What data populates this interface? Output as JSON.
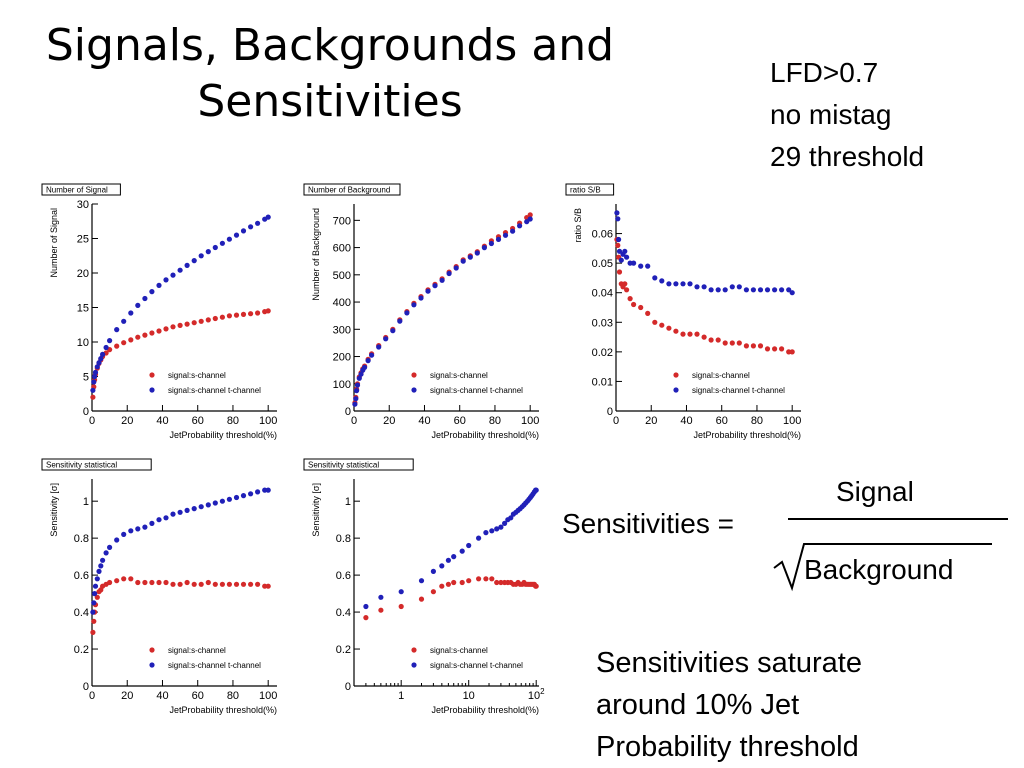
{
  "slide": {
    "title_line1": "Signals, Backgrounds and",
    "title_line2": "Sensitivities",
    "cuts": [
      "LFD>0.7",
      "no mistag",
      "29 threshold"
    ],
    "formula": {
      "lhs": "Sensitivities =",
      "numerator": "Signal",
      "denominator": "Background"
    },
    "note_lines": [
      "Sensitivities saturate",
      "around 10% Jet",
      "Probability threshold"
    ]
  },
  "colors": {
    "s_channel": "#d42a2a",
    "st_channel": "#2020b8"
  },
  "chart_data": [
    {
      "type": "scatter",
      "title": "Number of Signal",
      "xlabel": "JetProbability threshold(%)",
      "ylabel": "Number of Signal",
      "xlim": [
        0,
        105
      ],
      "ylim": [
        0,
        30
      ],
      "xticks": [
        0,
        20,
        40,
        60,
        80,
        100
      ],
      "yticks": [
        0,
        5,
        10,
        15,
        20,
        25,
        30
      ],
      "xscale": "linear",
      "legend": "bottom-right",
      "series": [
        {
          "name": "signal:s-channel",
          "color": "#d42a2a",
          "x": [
            0.5,
            1,
            1.5,
            2,
            3,
            4,
            5,
            6,
            8,
            10,
            14,
            18,
            22,
            26,
            30,
            34,
            38,
            42,
            46,
            50,
            54,
            58,
            62,
            66,
            70,
            74,
            78,
            82,
            86,
            90,
            94,
            98,
            100
          ],
          "y": [
            2,
            3.5,
            4.5,
            5.3,
            6.2,
            6.9,
            7.4,
            7.9,
            8.4,
            8.9,
            9.4,
            9.9,
            10.3,
            10.7,
            11,
            11.3,
            11.6,
            11.9,
            12.2,
            12.4,
            12.6,
            12.8,
            13,
            13.2,
            13.4,
            13.6,
            13.8,
            13.9,
            14,
            14.1,
            14.2,
            14.4,
            14.5
          ]
        },
        {
          "name": "signal:s-channel t-channel",
          "color": "#2020b8",
          "x": [
            0.5,
            1,
            1.5,
            2,
            3,
            4,
            5,
            6,
            8,
            10,
            14,
            18,
            22,
            26,
            30,
            34,
            38,
            42,
            46,
            50,
            54,
            58,
            62,
            66,
            70,
            74,
            78,
            82,
            86,
            90,
            94,
            98,
            100
          ],
          "y": [
            3,
            4.2,
            5,
            5.6,
            6.4,
            7,
            7.6,
            8.2,
            9.2,
            10.2,
            11.8,
            13,
            14.2,
            15.3,
            16.3,
            17.3,
            18.2,
            19,
            19.7,
            20.4,
            21.1,
            21.8,
            22.5,
            23.1,
            23.7,
            24.3,
            24.9,
            25.5,
            26.1,
            26.7,
            27.2,
            27.8,
            28.1
          ]
        }
      ]
    },
    {
      "type": "scatter",
      "title": "Number of Background",
      "xlabel": "JetProbability threshold(%)",
      "ylabel": "Number of Background",
      "xlim": [
        0,
        105
      ],
      "ylim": [
        0,
        760
      ],
      "xticks": [
        0,
        20,
        40,
        60,
        80,
        100
      ],
      "yticks": [
        0,
        100,
        200,
        300,
        400,
        500,
        600,
        700
      ],
      "xscale": "linear",
      "legend": "bottom-right",
      "series": [
        {
          "name": "signal:s-channel",
          "color": "#d42a2a",
          "x": [
            0.5,
            1,
            1.5,
            2,
            3,
            4,
            5,
            6,
            8,
            10,
            14,
            18,
            22,
            26,
            30,
            34,
            38,
            42,
            46,
            50,
            54,
            58,
            62,
            66,
            70,
            74,
            78,
            82,
            86,
            90,
            94,
            98,
            100
          ],
          "y": [
            30,
            50,
            80,
            100,
            125,
            140,
            155,
            165,
            190,
            210,
            240,
            270,
            300,
            335,
            365,
            395,
            420,
            445,
            465,
            485,
            510,
            530,
            555,
            570,
            585,
            605,
            625,
            640,
            655,
            670,
            690,
            710,
            720
          ]
        },
        {
          "name": "signal:s-channel t-channel",
          "color": "#2020b8",
          "x": [
            0.5,
            1,
            1.5,
            2,
            3,
            4,
            5,
            6,
            8,
            10,
            14,
            18,
            22,
            26,
            30,
            34,
            38,
            42,
            46,
            50,
            54,
            58,
            62,
            66,
            70,
            74,
            78,
            82,
            86,
            90,
            94,
            98,
            100
          ],
          "y": [
            25,
            45,
            75,
            95,
            120,
            135,
            150,
            160,
            185,
            205,
            235,
            265,
            295,
            330,
            360,
            390,
            415,
            440,
            460,
            480,
            505,
            525,
            550,
            565,
            580,
            600,
            615,
            630,
            645,
            660,
            680,
            695,
            705
          ]
        }
      ]
    },
    {
      "type": "scatter",
      "title": "ratio S/B",
      "xlabel": "JetProbability threshold(%)",
      "ylabel": "ratio S/B",
      "xlim": [
        0,
        105
      ],
      "ylim": [
        0,
        0.07
      ],
      "xticks": [
        0,
        20,
        40,
        60,
        80,
        100
      ],
      "yticks": [
        0,
        0.01,
        0.02,
        0.03,
        0.04,
        0.05,
        0.06
      ],
      "xscale": "linear",
      "legend": "bottom-right",
      "series": [
        {
          "name": "signal:s-channel",
          "color": "#d42a2a",
          "x": [
            0.5,
            1,
            1.5,
            2,
            3,
            4,
            5,
            6,
            8,
            10,
            14,
            18,
            22,
            26,
            30,
            34,
            38,
            42,
            46,
            50,
            54,
            58,
            62,
            66,
            70,
            74,
            78,
            82,
            86,
            90,
            94,
            98,
            100
          ],
          "y": [
            0.058,
            0.056,
            0.052,
            0.047,
            0.043,
            0.042,
            0.043,
            0.041,
            0.038,
            0.036,
            0.035,
            0.033,
            0.03,
            0.029,
            0.028,
            0.027,
            0.026,
            0.026,
            0.026,
            0.025,
            0.024,
            0.024,
            0.023,
            0.023,
            0.023,
            0.022,
            0.022,
            0.022,
            0.021,
            0.021,
            0.021,
            0.02,
            0.02
          ]
        },
        {
          "name": "signal:s-channel t-channel",
          "color": "#2020b8",
          "x": [
            0.5,
            1,
            1.5,
            2,
            3,
            4,
            5,
            6,
            8,
            10,
            14,
            18,
            22,
            26,
            30,
            34,
            38,
            42,
            46,
            50,
            54,
            58,
            62,
            66,
            70,
            74,
            78,
            82,
            86,
            90,
            94,
            98,
            100
          ],
          "y": [
            0.067,
            0.065,
            0.058,
            0.054,
            0.051,
            0.053,
            0.054,
            0.052,
            0.05,
            0.05,
            0.049,
            0.049,
            0.045,
            0.044,
            0.043,
            0.043,
            0.043,
            0.043,
            0.042,
            0.042,
            0.041,
            0.041,
            0.041,
            0.042,
            0.042,
            0.041,
            0.041,
            0.041,
            0.041,
            0.041,
            0.041,
            0.041,
            0.04
          ]
        }
      ]
    },
    {
      "type": "scatter",
      "title": "Sensitivity statistical",
      "xlabel": "JetProbability threshold(%)",
      "ylabel": "Sensitivity [σ]",
      "xlim": [
        0,
        105
      ],
      "ylim": [
        0,
        1.12
      ],
      "xticks": [
        0,
        20,
        40,
        60,
        80,
        100
      ],
      "yticks": [
        0,
        0.2,
        0.4,
        0.6,
        0.8,
        1
      ],
      "xscale": "linear",
      "legend": "bottom-right",
      "series": [
        {
          "name": "signal:s-channel",
          "color": "#d42a2a",
          "x": [
            0.5,
            1,
            1.5,
            2,
            3,
            4,
            5,
            6,
            8,
            10,
            14,
            18,
            22,
            26,
            30,
            34,
            38,
            42,
            46,
            50,
            54,
            58,
            62,
            66,
            70,
            74,
            78,
            82,
            86,
            90,
            94,
            98,
            100
          ],
          "y": [
            0.29,
            0.35,
            0.4,
            0.44,
            0.48,
            0.51,
            0.52,
            0.54,
            0.55,
            0.56,
            0.57,
            0.58,
            0.58,
            0.56,
            0.56,
            0.56,
            0.56,
            0.56,
            0.55,
            0.55,
            0.56,
            0.55,
            0.55,
            0.56,
            0.55,
            0.55,
            0.55,
            0.55,
            0.55,
            0.55,
            0.55,
            0.54,
            0.54
          ]
        },
        {
          "name": "signal:s-channel t-channel",
          "color": "#2020b8",
          "x": [
            0.5,
            1,
            1.5,
            2,
            3,
            4,
            5,
            6,
            8,
            10,
            14,
            18,
            22,
            26,
            30,
            34,
            38,
            42,
            46,
            50,
            54,
            58,
            62,
            66,
            70,
            74,
            78,
            82,
            86,
            90,
            94,
            98,
            100
          ],
          "y": [
            0.4,
            0.45,
            0.5,
            0.54,
            0.58,
            0.62,
            0.65,
            0.68,
            0.72,
            0.75,
            0.79,
            0.82,
            0.84,
            0.85,
            0.86,
            0.88,
            0.9,
            0.91,
            0.93,
            0.94,
            0.95,
            0.96,
            0.97,
            0.98,
            0.99,
            1,
            1.01,
            1.02,
            1.03,
            1.04,
            1.05,
            1.06,
            1.06
          ]
        }
      ]
    },
    {
      "type": "scatter",
      "title": "Sensitivity statistical",
      "xlabel": "JetProbability threshold(%)",
      "ylabel": "Sensitivity [σ]",
      "xlim": [
        0.2,
        110
      ],
      "ylim": [
        0,
        1.12
      ],
      "xticks": [
        1,
        10,
        100
      ],
      "xticklabels": [
        "1",
        "10",
        "10^2"
      ],
      "yticks": [
        0,
        0.2,
        0.4,
        0.6,
        0.8,
        1
      ],
      "xscale": "log",
      "legend": "bottom-right",
      "series": [
        {
          "name": "signal:s-channel",
          "color": "#d42a2a",
          "x": [
            0.3,
            0.5,
            1,
            2,
            3,
            4,
            5,
            6,
            8,
            10,
            14,
            18,
            22,
            26,
            30,
            34,
            38,
            42,
            46,
            50,
            54,
            58,
            62,
            66,
            70,
            74,
            78,
            82,
            86,
            90,
            94,
            98,
            100
          ],
          "y": [
            0.37,
            0.41,
            0.43,
            0.47,
            0.51,
            0.54,
            0.55,
            0.56,
            0.56,
            0.57,
            0.58,
            0.58,
            0.58,
            0.56,
            0.56,
            0.56,
            0.56,
            0.56,
            0.55,
            0.55,
            0.56,
            0.55,
            0.55,
            0.56,
            0.55,
            0.55,
            0.55,
            0.55,
            0.55,
            0.55,
            0.55,
            0.54,
            0.54
          ]
        },
        {
          "name": "signal:s-channel t-channel",
          "color": "#2020b8",
          "x": [
            0.3,
            0.5,
            1,
            2,
            3,
            4,
            5,
            6,
            8,
            10,
            14,
            18,
            22,
            26,
            30,
            34,
            38,
            42,
            46,
            50,
            54,
            58,
            62,
            66,
            70,
            74,
            78,
            82,
            86,
            90,
            94,
            98,
            100
          ],
          "y": [
            0.43,
            0.48,
            0.51,
            0.57,
            0.62,
            0.65,
            0.68,
            0.7,
            0.73,
            0.76,
            0.8,
            0.83,
            0.84,
            0.85,
            0.86,
            0.88,
            0.9,
            0.91,
            0.93,
            0.94,
            0.95,
            0.96,
            0.97,
            0.98,
            0.99,
            1,
            1.01,
            1.02,
            1.03,
            1.04,
            1.05,
            1.06,
            1.06
          ]
        }
      ]
    }
  ]
}
